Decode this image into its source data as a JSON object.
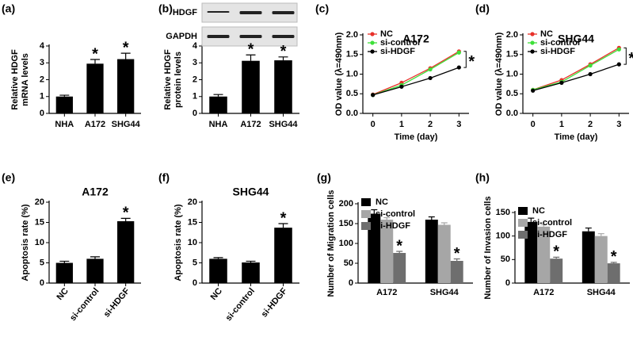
{
  "chart_data": [
    {
      "type": "bar",
      "panel_label": "(a)",
      "ylabel": [
        "Relative HDGF",
        "mRNA levels"
      ],
      "categories": [
        "NHA",
        "A172",
        "SHG44"
      ],
      "values": [
        1.0,
        2.95,
        3.22
      ],
      "errors": [
        0.08,
        0.25,
        0.35
      ],
      "significance": [
        null,
        "*",
        "*"
      ],
      "color": "#000000",
      "ylim": [
        0,
        4
      ],
      "yticks": [
        0,
        1,
        2,
        3,
        4
      ]
    },
    {
      "type": "bar",
      "panel_label": "(b)",
      "blot_labels": [
        "HDGF",
        "GAPDH"
      ],
      "ylabel": [
        "Relative HDGF",
        "protein levels"
      ],
      "categories": [
        "NHA",
        "A172",
        "SHG44"
      ],
      "values": [
        1.0,
        3.12,
        3.15
      ],
      "errors": [
        0.12,
        0.35,
        0.2
      ],
      "significance": [
        null,
        "*",
        "*"
      ],
      "color": "#000000",
      "ylim": [
        0,
        4
      ],
      "yticks": [
        0,
        1,
        2,
        3,
        4
      ]
    },
    {
      "type": "line",
      "panel_label": "(c)",
      "title": "A172",
      "xlabel": "Time (day)",
      "ylabel": [
        "OD value (λ=490nm)"
      ],
      "x": [
        0,
        1,
        2,
        3
      ],
      "xlim": [
        -0.35,
        3.35
      ],
      "xticks": [
        0,
        1,
        2,
        3
      ],
      "ylim": [
        0,
        2
      ],
      "yticks": [
        {
          "value": 0,
          "label": "0.0"
        },
        0.5,
        {
          "value": 1,
          "label": "1.0"
        },
        1.5,
        {
          "value": 2,
          "label": "2.0"
        }
      ],
      "significance": "*",
      "series": [
        {
          "name": "NC",
          "color": "#e8312a",
          "values": [
            0.48,
            0.78,
            1.15,
            1.58
          ]
        },
        {
          "name": "si-control",
          "color": "#3ee03a",
          "values": [
            0.47,
            0.72,
            1.12,
            1.55
          ]
        },
        {
          "name": "si-HDGF",
          "color": "#000000",
          "values": [
            0.47,
            0.68,
            0.9,
            1.17
          ]
        }
      ]
    },
    {
      "type": "line",
      "panel_label": "(d)",
      "title": "SHG44",
      "xlabel": "Time (day)",
      "ylabel": [
        "OD value (λ=490nm)"
      ],
      "x": [
        0,
        1,
        2,
        3
      ],
      "xlim": [
        -0.35,
        3.35
      ],
      "xticks": [
        0,
        1,
        2,
        3
      ],
      "ylim": [
        0,
        2
      ],
      "yticks": [
        {
          "value": 0,
          "label": "0.0"
        },
        0.5,
        {
          "value": 1,
          "label": "1.0"
        },
        1.5,
        {
          "value": 2,
          "label": "2.0"
        }
      ],
      "significance": "*",
      "series": [
        {
          "name": "NC",
          "color": "#e8312a",
          "values": [
            0.6,
            0.85,
            1.25,
            1.67
          ]
        },
        {
          "name": "si-control",
          "color": "#3ee03a",
          "values": [
            0.6,
            0.8,
            1.22,
            1.63
          ]
        },
        {
          "name": "si-HDGF",
          "color": "#000000",
          "values": [
            0.58,
            0.78,
            1.0,
            1.25
          ]
        }
      ]
    },
    {
      "type": "bar",
      "panel_label": "(e)",
      "title": "A172",
      "ylabel": [
        "Apoptosis rate (%)"
      ],
      "categories": [
        "NC",
        "si-control",
        "si-HDGF"
      ],
      "values": [
        5.0,
        6.0,
        15.3
      ],
      "errors": [
        0.4,
        0.5,
        0.7
      ],
      "significance": [
        null,
        null,
        "*"
      ],
      "color": "#000000",
      "ylim": [
        0,
        20
      ],
      "yticks": [
        0,
        5,
        10,
        15,
        20
      ]
    },
    {
      "type": "bar",
      "panel_label": "(f)",
      "title": "SHG44",
      "ylabel": [
        "Apoptosis rate (%)"
      ],
      "categories": [
        "NC",
        "si-control",
        "si-HDGF"
      ],
      "values": [
        6.0,
        5.1,
        13.7
      ],
      "errors": [
        0.3,
        0.3,
        1.0
      ],
      "significance": [
        null,
        null,
        "*"
      ],
      "color": "#000000",
      "ylim": [
        0,
        20
      ],
      "yticks": [
        0,
        5,
        10,
        15,
        20
      ]
    },
    {
      "type": "grouped_bar",
      "panel_label": "(g)",
      "ylabel": [
        "Number of Migration cells"
      ],
      "categories": [
        "A172",
        "SHG44"
      ],
      "ylim": [
        0,
        200
      ],
      "yticks": [
        0,
        50,
        100,
        150,
        200
      ],
      "series": [
        {
          "name": "NC",
          "color": "#000000",
          "values": [
            175,
            160
          ],
          "errors": [
            10,
            7
          ]
        },
        {
          "name": "si-control",
          "color": "#a6a6a6",
          "values": [
            160,
            147
          ],
          "errors": [
            5,
            5
          ]
        },
        {
          "name": "si-HDGF",
          "color": "#6e6e6e",
          "values": [
            76,
            56
          ],
          "errors": [
            4,
            5
          ],
          "significance": [
            "*",
            "*"
          ]
        }
      ]
    },
    {
      "type": "grouped_bar",
      "panel_label": "(h)",
      "ylabel": [
        "Number of Invasion cells"
      ],
      "categories": [
        "A172",
        "SHG44"
      ],
      "ylim": [
        0,
        150
      ],
      "yticks": [
        0,
        50,
        100,
        150
      ],
      "series": [
        {
          "name": "NC",
          "color": "#000000",
          "values": [
            130,
            110
          ],
          "errors": [
            8,
            7
          ]
        },
        {
          "name": "si-control",
          "color": "#a6a6a6",
          "values": [
            120,
            100
          ],
          "errors": [
            4,
            5
          ]
        },
        {
          "name": "si-HDGF",
          "color": "#6e6e6e",
          "values": [
            52,
            42
          ],
          "errors": [
            3,
            2
          ],
          "significance": [
            "*",
            "*"
          ]
        }
      ]
    }
  ]
}
